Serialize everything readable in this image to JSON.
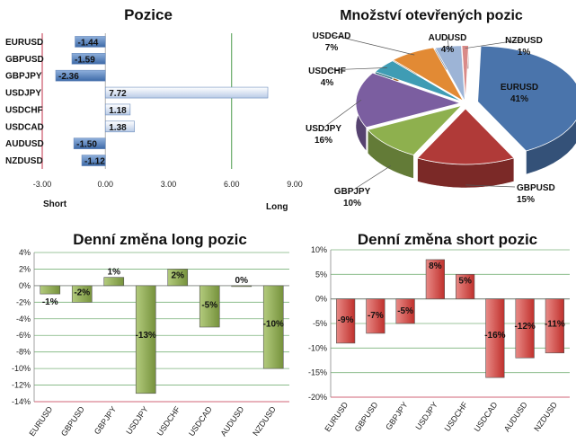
{
  "chart_data": [
    {
      "type": "bar",
      "orientation": "horizontal",
      "title": "Pozice",
      "categories": [
        "EURUSD",
        "GBPUSD",
        "GBPJPY",
        "USDJPY",
        "USDCHF",
        "USDCAD",
        "AUDUSD",
        "NZDUSD"
      ],
      "values": [
        -1.44,
        -1.59,
        -2.36,
        7.72,
        1.18,
        1.38,
        -1.5,
        -1.12
      ],
      "value_labels": [
        "-1.44",
        "-1.59",
        "-2.36",
        "7.72",
        "1.18",
        "1.38",
        "-1.50",
        "-1.12"
      ],
      "xlim": [
        -3,
        9
      ],
      "xticks": [
        "-3.00",
        "0.00",
        "3.00",
        "6.00",
        "9.00"
      ],
      "left_label": "Short",
      "right_label": "Long",
      "colors": {
        "negative": "#5a82b8",
        "positive": "#dfe7f3",
        "left_line": "#c0304a",
        "right_line": "#4a9a4a"
      }
    },
    {
      "type": "pie",
      "title": "Množství otevřených pozic",
      "slices": [
        {
          "name": "EURUSD",
          "value": 41,
          "label": "41%",
          "color": "#4a74ab"
        },
        {
          "name": "GBPUSD",
          "value": 15,
          "label": "15%",
          "color": "#b03a38"
        },
        {
          "name": "GBPJPY",
          "value": 10,
          "label": "10%",
          "color": "#8eb04e"
        },
        {
          "name": "USDJPY",
          "value": 16,
          "label": "16%",
          "color": "#7b5ea0"
        },
        {
          "name": "USDCHF",
          "value": 4,
          "label": "4%",
          "color": "#3f9cb4"
        },
        {
          "name": "USDCAD",
          "value": 7,
          "label": "7%",
          "color": "#e28a34"
        },
        {
          "name": "AUDUSD",
          "value": 4,
          "label": "4%",
          "color": "#9db4d6"
        },
        {
          "name": "NZDUSD",
          "value": 1,
          "label": "1%",
          "color": "#d98a88"
        }
      ]
    },
    {
      "type": "bar",
      "title": "Denní změna long pozic",
      "categories": [
        "EURUSD",
        "GBPUSD",
        "GBPJPY",
        "USDJPY",
        "USDCHF",
        "USDCAD",
        "AUDUSD",
        "NZDUSD"
      ],
      "values": [
        -1,
        -2,
        1,
        -13,
        2,
        -5,
        0,
        -10
      ],
      "value_labels": [
        "-1%",
        "-2%",
        "1%",
        "-13%",
        "2%",
        "-5%",
        "0%",
        "-10%"
      ],
      "ylim": [
        -14,
        4
      ],
      "yticks": [
        "4%",
        "2%",
        "0%",
        "-2%",
        "-4%",
        "-6%",
        "-8%",
        "-10%",
        "-12%",
        "-14%"
      ],
      "colors": {
        "bar": "#76923c",
        "bar_light": "#b3cb7d",
        "grid": "#5aa05a",
        "bottom_line": "#c0304a"
      }
    },
    {
      "type": "bar",
      "title": "Denní změna short pozic",
      "categories": [
        "EURUSD",
        "GBPUSD",
        "GBPJPY",
        "USDJPY",
        "USDCHF",
        "USDCAD",
        "AUDUSD",
        "NZDUSD"
      ],
      "values": [
        -9,
        -7,
        -5,
        8,
        5,
        -16,
        -12,
        -11
      ],
      "value_labels": [
        "-9%",
        "-7%",
        "-5%",
        "8%",
        "5%",
        "-16%",
        "-12%",
        "-11%"
      ],
      "ylim": [
        -20,
        10
      ],
      "yticks": [
        "10%",
        "5%",
        "0%",
        "-5%",
        "-10%",
        "-15%",
        "-20%"
      ],
      "colors": {
        "bar": "#c0302c",
        "bar_light": "#e88a86",
        "grid": "#5aa05a",
        "bottom_line": "#c0304a"
      }
    }
  ]
}
